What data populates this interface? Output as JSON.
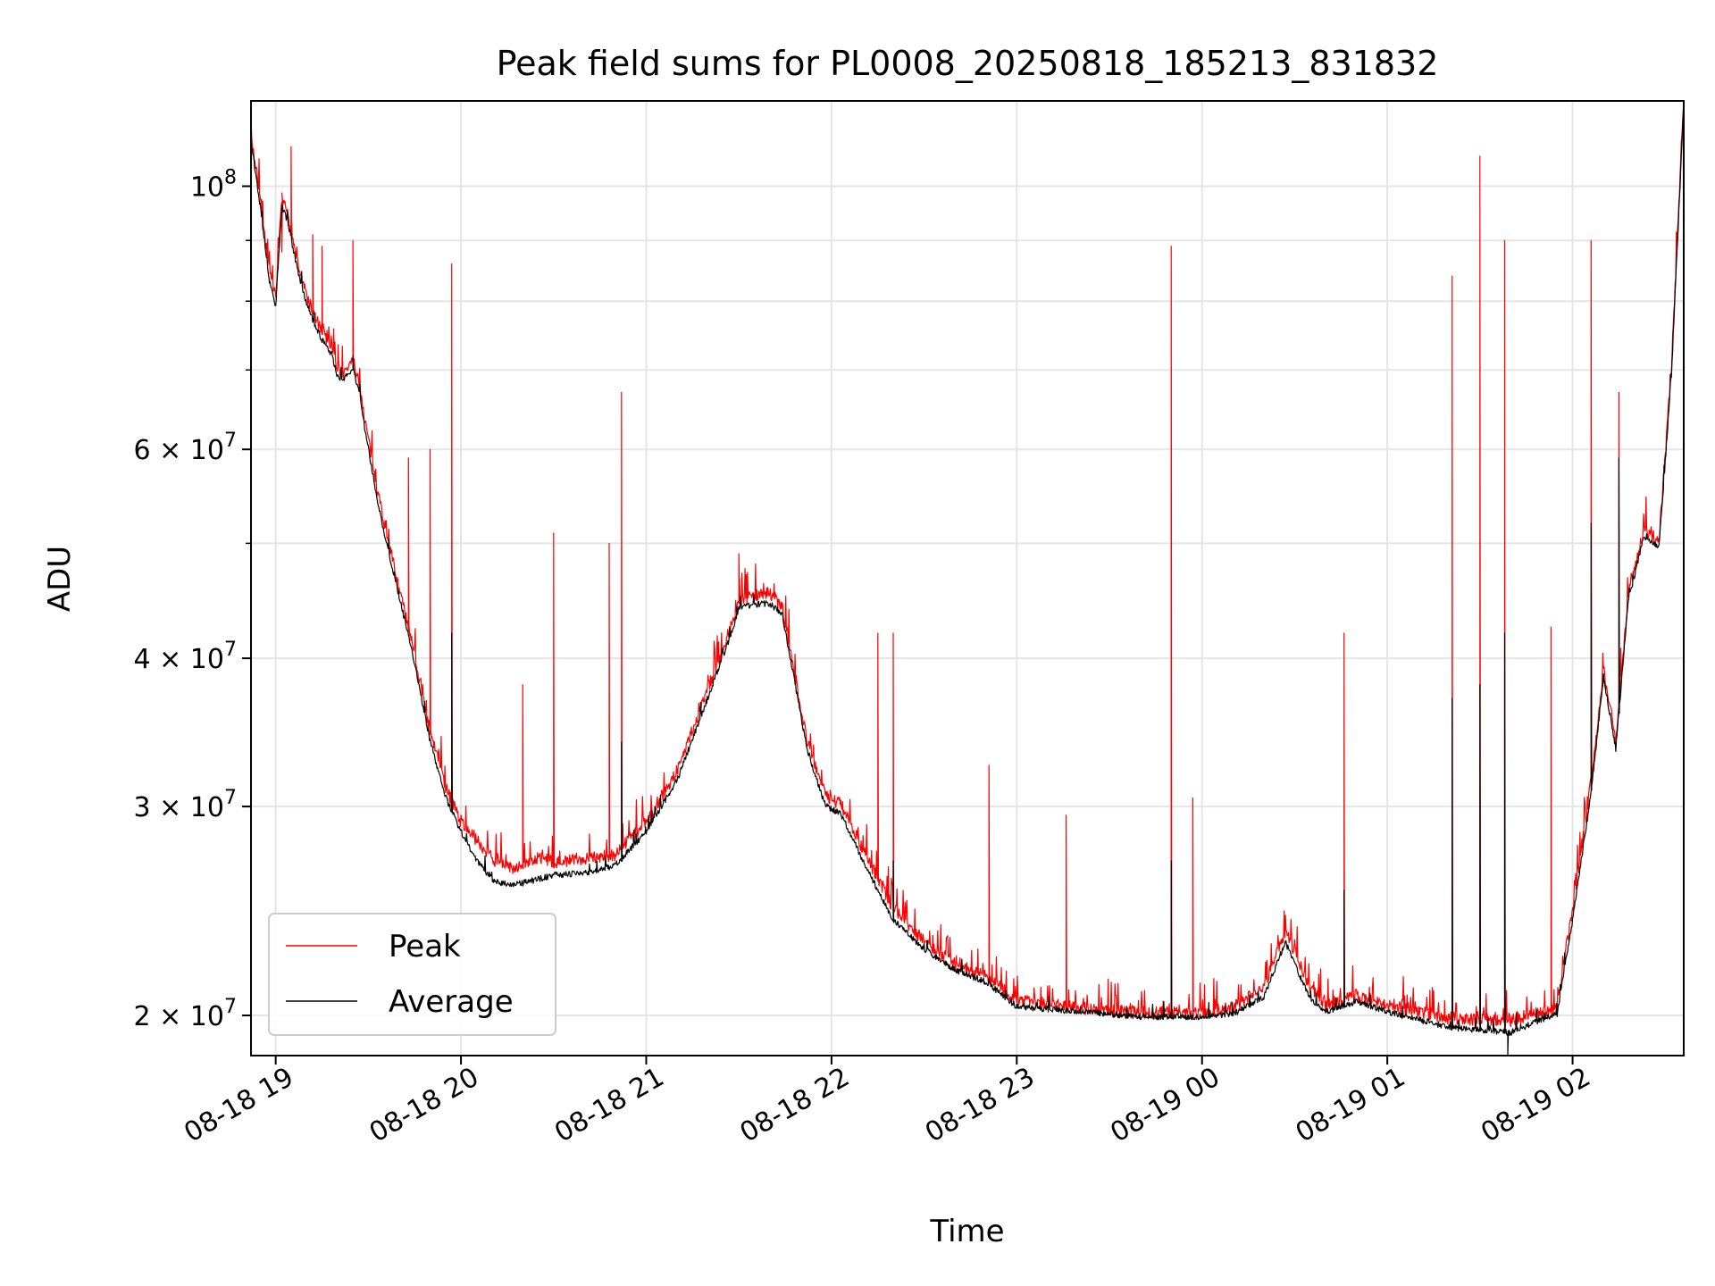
{
  "chart_data": {
    "type": "line",
    "title": "Peak field sums for PL0008_20250818_185213_831832",
    "xlabel": "Time",
    "ylabel": "ADU",
    "yscale": "log",
    "xlim": [
      "2025-08-18 18:52",
      "2025-08-19 02:36"
    ],
    "ylim": [
      18500000,
      118000000
    ],
    "grid": true,
    "legend_position": "lower-left",
    "x_ticks": [
      {
        "t": "2025-08-18 19:00",
        "label": "08-18 19"
      },
      {
        "t": "2025-08-18 20:00",
        "label": "08-18 20"
      },
      {
        "t": "2025-08-18 21:00",
        "label": "08-18 21"
      },
      {
        "t": "2025-08-18 22:00",
        "label": "08-18 22"
      },
      {
        "t": "2025-08-18 23:00",
        "label": "08-18 23"
      },
      {
        "t": "2025-08-19 00:00",
        "label": "08-19 00"
      },
      {
        "t": "2025-08-19 01:00",
        "label": "08-19 01"
      },
      {
        "t": "2025-08-19 02:00",
        "label": "08-19 02"
      }
    ],
    "y_ticks": [
      {
        "value": 20000000,
        "base": "2 × 10",
        "exp": "7"
      },
      {
        "value": 30000000,
        "base": "3 × 10",
        "exp": "7"
      },
      {
        "value": 40000000,
        "base": "4 × 10",
        "exp": "7"
      },
      {
        "value": 60000000,
        "base": "6 × 10",
        "exp": "7"
      },
      {
        "value": 100000000,
        "base": "10",
        "exp": "8"
      }
    ],
    "y_minor_ticks": [
      50000000,
      70000000,
      80000000,
      90000000
    ],
    "series": [
      {
        "name": "Peak",
        "color": "#ff0000",
        "x": [
          "2025-08-18 18:52",
          "2025-08-18 18:55",
          "2025-08-18 18:58",
          "2025-08-18 19:00",
          "2025-08-18 19:02",
          "2025-08-18 19:04",
          "2025-08-18 19:05",
          "2025-08-18 19:07",
          "2025-08-18 19:09",
          "2025-08-18 19:12",
          "2025-08-18 19:15",
          "2025-08-18 19:18",
          "2025-08-18 19:20",
          "2025-08-18 19:22",
          "2025-08-18 19:25",
          "2025-08-18 19:27",
          "2025-08-18 19:29",
          "2025-08-18 19:32",
          "2025-08-18 19:35",
          "2025-08-18 19:40",
          "2025-08-18 19:45",
          "2025-08-18 19:50",
          "2025-08-18 19:55",
          "2025-08-18 20:00",
          "2025-08-18 20:05",
          "2025-08-18 20:10",
          "2025-08-18 20:15",
          "2025-08-18 20:20",
          "2025-08-18 20:25",
          "2025-08-18 20:30",
          "2025-08-18 20:40",
          "2025-08-18 20:50",
          "2025-08-18 21:00",
          "2025-08-18 21:10",
          "2025-08-18 21:20",
          "2025-08-18 21:27",
          "2025-08-18 21:30",
          "2025-08-18 21:35",
          "2025-08-18 21:40",
          "2025-08-18 21:44",
          "2025-08-18 21:47",
          "2025-08-18 21:52",
          "2025-08-18 21:58",
          "2025-08-18 22:03",
          "2025-08-18 22:10",
          "2025-08-18 22:20",
          "2025-08-18 22:30",
          "2025-08-18 22:40",
          "2025-08-18 22:50",
          "2025-08-18 23:00",
          "2025-08-18 23:20",
          "2025-08-18 23:40",
          "2025-08-19 00:00",
          "2025-08-19 00:10",
          "2025-08-19 00:20",
          "2025-08-19 00:27",
          "2025-08-19 00:35",
          "2025-08-19 00:40",
          "2025-08-19 00:50",
          "2025-08-19 01:00",
          "2025-08-19 01:20",
          "2025-08-19 01:40",
          "2025-08-19 01:48",
          "2025-08-19 01:55",
          "2025-08-19 02:00",
          "2025-08-19 02:05",
          "2025-08-19 02:07",
          "2025-08-19 02:10",
          "2025-08-19 02:14",
          "2025-08-19 02:18",
          "2025-08-19 02:23",
          "2025-08-19 02:28",
          "2025-08-19 02:32",
          "2025-08-19 02:36"
        ],
        "y": [
          110000000,
          97000000,
          84000000,
          80000000,
          97000000,
          94000000,
          91000000,
          86000000,
          82000000,
          78000000,
          75000000,
          73000000,
          70000000,
          69000000,
          71000000,
          68000000,
          63000000,
          57000000,
          52000000,
          45500000,
          40000000,
          34500000,
          31000000,
          29000000,
          28000000,
          27000000,
          26500000,
          26600000,
          27000000,
          26800000,
          27000000,
          27200000,
          29000000,
          32000000,
          37500000,
          42000000,
          44500000,
          45000000,
          45200000,
          44000000,
          40000000,
          34000000,
          30500000,
          30000000,
          27500000,
          24500000,
          23000000,
          22000000,
          21500000,
          20500000,
          20200000,
          20000000,
          20000000,
          20200000,
          21000000,
          23500000,
          21000000,
          20300000,
          20700000,
          20300000,
          19800000,
          19700000,
          20000000,
          20200000,
          24500000,
          30000000,
          33000000,
          39000000,
          34000000,
          45000000,
          51000000,
          50000000,
          70000000,
          118000000
        ],
        "spikes": [
          {
            "t": "2025-08-18 19:02",
            "y": 88000000
          },
          {
            "t": "2025-08-18 19:05",
            "y": 108000000
          },
          {
            "t": "2025-08-18 19:12",
            "y": 91000000
          },
          {
            "t": "2025-08-18 19:15",
            "y": 89000000
          },
          {
            "t": "2025-08-18 19:25",
            "y": 90000000
          },
          {
            "t": "2025-08-18 19:43",
            "y": 59000000
          },
          {
            "t": "2025-08-18 19:50",
            "y": 60000000
          },
          {
            "t": "2025-08-18 19:57",
            "y": 86000000
          },
          {
            "t": "2025-08-18 20:20",
            "y": 38000000
          },
          {
            "t": "2025-08-18 20:30",
            "y": 51000000
          },
          {
            "t": "2025-08-18 20:48",
            "y": 50000000
          },
          {
            "t": "2025-08-18 20:52",
            "y": 67000000
          },
          {
            "t": "2025-08-18 21:30",
            "y": 49000000
          },
          {
            "t": "2025-08-18 22:15",
            "y": 42000000
          },
          {
            "t": "2025-08-18 22:20",
            "y": 42000000
          },
          {
            "t": "2025-08-18 22:51",
            "y": 32500000
          },
          {
            "t": "2025-08-18 23:16",
            "y": 29500000
          },
          {
            "t": "2025-08-18 23:50",
            "y": 89000000
          },
          {
            "t": "2025-08-18 23:57",
            "y": 30500000
          },
          {
            "t": "2025-08-19 00:46",
            "y": 42000000
          },
          {
            "t": "2025-08-19 01:21",
            "y": 84000000
          },
          {
            "t": "2025-08-19 01:30",
            "y": 106000000
          },
          {
            "t": "2025-08-19 01:38",
            "y": 90000000
          },
          {
            "t": "2025-08-19 01:53",
            "y": 42500000
          },
          {
            "t": "2025-08-19 02:06",
            "y": 90000000
          },
          {
            "t": "2025-08-19 02:15",
            "y": 67000000
          }
        ]
      },
      {
        "name": "Average",
        "color": "#000000",
        "x": [
          "2025-08-18 18:52",
          "2025-08-18 18:55",
          "2025-08-18 18:58",
          "2025-08-18 19:00",
          "2025-08-18 19:02",
          "2025-08-18 19:04",
          "2025-08-18 19:05",
          "2025-08-18 19:07",
          "2025-08-18 19:09",
          "2025-08-18 19:12",
          "2025-08-18 19:15",
          "2025-08-18 19:18",
          "2025-08-18 19:20",
          "2025-08-18 19:22",
          "2025-08-18 19:25",
          "2025-08-18 19:27",
          "2025-08-18 19:29",
          "2025-08-18 19:32",
          "2025-08-18 19:35",
          "2025-08-18 19:40",
          "2025-08-18 19:45",
          "2025-08-18 19:50",
          "2025-08-18 19:55",
          "2025-08-18 20:00",
          "2025-08-18 20:05",
          "2025-08-18 20:10",
          "2025-08-18 20:15",
          "2025-08-18 20:20",
          "2025-08-18 20:25",
          "2025-08-18 20:30",
          "2025-08-18 20:40",
          "2025-08-18 20:50",
          "2025-08-18 21:00",
          "2025-08-18 21:10",
          "2025-08-18 21:20",
          "2025-08-18 21:27",
          "2025-08-18 21:30",
          "2025-08-18 21:35",
          "2025-08-18 21:40",
          "2025-08-18 21:44",
          "2025-08-18 21:47",
          "2025-08-18 21:52",
          "2025-08-18 21:58",
          "2025-08-18 22:03",
          "2025-08-18 22:10",
          "2025-08-18 22:20",
          "2025-08-18 22:30",
          "2025-08-18 22:40",
          "2025-08-18 22:50",
          "2025-08-18 23:00",
          "2025-08-18 23:20",
          "2025-08-18 23:40",
          "2025-08-19 00:00",
          "2025-08-19 00:10",
          "2025-08-19 00:20",
          "2025-08-19 00:27",
          "2025-08-19 00:35",
          "2025-08-19 00:40",
          "2025-08-19 00:50",
          "2025-08-19 01:00",
          "2025-08-19 01:20",
          "2025-08-19 01:40",
          "2025-08-19 01:48",
          "2025-08-19 01:55",
          "2025-08-19 02:00",
          "2025-08-19 02:05",
          "2025-08-19 02:07",
          "2025-08-19 02:10",
          "2025-08-19 02:14",
          "2025-08-19 02:18",
          "2025-08-19 02:23",
          "2025-08-19 02:28",
          "2025-08-19 02:32",
          "2025-08-19 02:36"
        ],
        "y": [
          109000000,
          96000000,
          83000000,
          79000000,
          96000000,
          93000000,
          90000000,
          85000000,
          81000000,
          77000000,
          74000000,
          72000000,
          69000000,
          68500000,
          70000000,
          67000000,
          62000000,
          56000000,
          51000000,
          45000000,
          39500000,
          34000000,
          30500000,
          28500000,
          27000000,
          26000000,
          25700000,
          25800000,
          26000000,
          26200000,
          26300000,
          26700000,
          28500000,
          31500000,
          37000000,
          41500000,
          44000000,
          44300000,
          44400000,
          43500000,
          39500000,
          33500000,
          30000000,
          29500000,
          27000000,
          24000000,
          22700000,
          21800000,
          21300000,
          20300000,
          20100000,
          19900000,
          19900000,
          20000000,
          20700000,
          23000000,
          20600000,
          20100000,
          20500000,
          20100000,
          19500000,
          19300000,
          19700000,
          20000000,
          24000000,
          29500000,
          32500000,
          38500000,
          33500000,
          44500000,
          50500000,
          49500000,
          69000000,
          117000000
        ],
        "spikes": [
          {
            "t": "2025-08-18 19:25",
            "y": 72000000
          },
          {
            "t": "2025-08-18 19:57",
            "y": 42000000
          },
          {
            "t": "2025-08-18 20:52",
            "y": 34000000
          },
          {
            "t": "2025-08-18 22:20",
            "y": 27000000
          },
          {
            "t": "2025-08-18 23:50",
            "y": 27000000
          },
          {
            "t": "2025-08-19 00:46",
            "y": 25500000
          },
          {
            "t": "2025-08-19 01:21",
            "y": 37000000
          },
          {
            "t": "2025-08-19 01:30",
            "y": 38000000
          },
          {
            "t": "2025-08-19 01:38",
            "y": 42000000
          },
          {
            "t": "2025-08-19 01:39",
            "y": 18500000
          },
          {
            "t": "2025-08-19 02:06",
            "y": 52000000
          },
          {
            "t": "2025-08-19 02:15",
            "y": 59000000
          }
        ]
      }
    ]
  }
}
